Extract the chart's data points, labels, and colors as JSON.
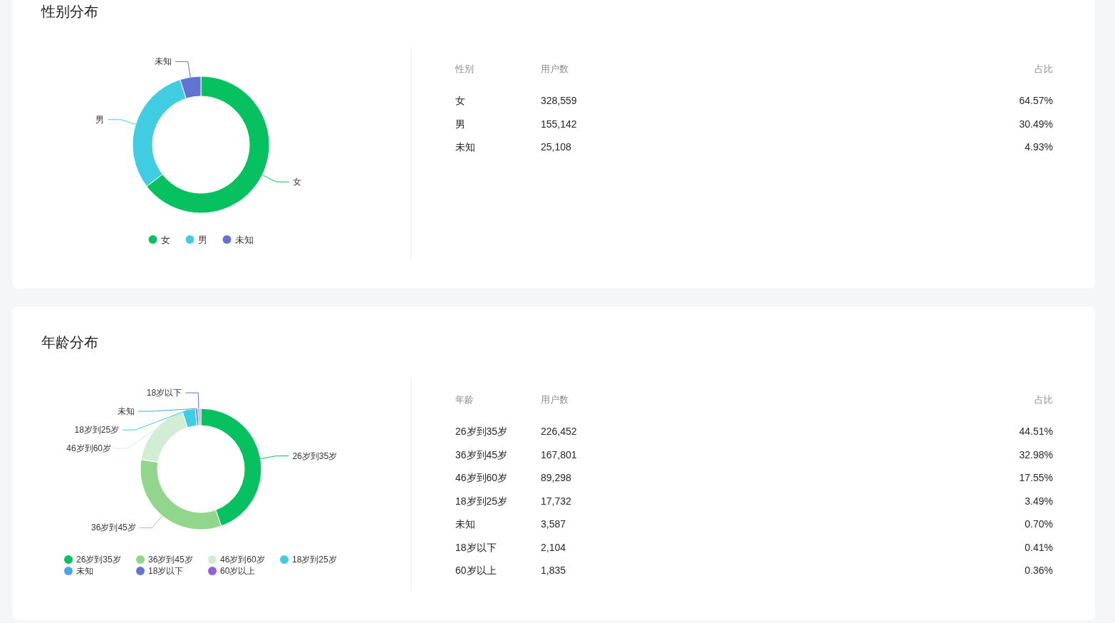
{
  "chart_data": [
    {
      "type": "donut",
      "title": "性别分布",
      "categories": [
        "女",
        "男",
        "未知"
      ],
      "values": [
        64.57,
        30.49,
        4.93
      ],
      "colors": [
        "#07c160",
        "#40cde1",
        "#6273d2"
      ],
      "legend": "bottom",
      "annotations": [
        "性别",
        "用户数",
        "占比",
        "328,559",
        "64.57%",
        "155,142",
        "30.49%",
        "25,108",
        "4.93%"
      ]
    },
    {
      "type": "donut",
      "title": "年龄分布",
      "categories": [
        "26岁到35岁",
        "36岁到45岁",
        "46岁到60岁",
        "18岁到25岁",
        "未知",
        "18岁以下",
        "60岁以上"
      ],
      "values": [
        44.51,
        32.98,
        17.55,
        3.49,
        0.7,
        0.41,
        0.36
      ],
      "colors": [
        "#07c160",
        "#91d68c",
        "#d1eed4",
        "#40cde1",
        "#4aa4ea",
        "#6273d2",
        "#9360d0"
      ],
      "legend": "bottom",
      "annotations": [
        "年龄",
        "用户数",
        "占比",
        "226,452",
        "44.51%",
        "167,801",
        "32.98%",
        "89,298",
        "17.55%",
        "17,732",
        "3.49%",
        "3,587",
        "0.70%",
        "2,104",
        "0.41%",
        "1,835",
        "0.36%"
      ]
    }
  ]
}
